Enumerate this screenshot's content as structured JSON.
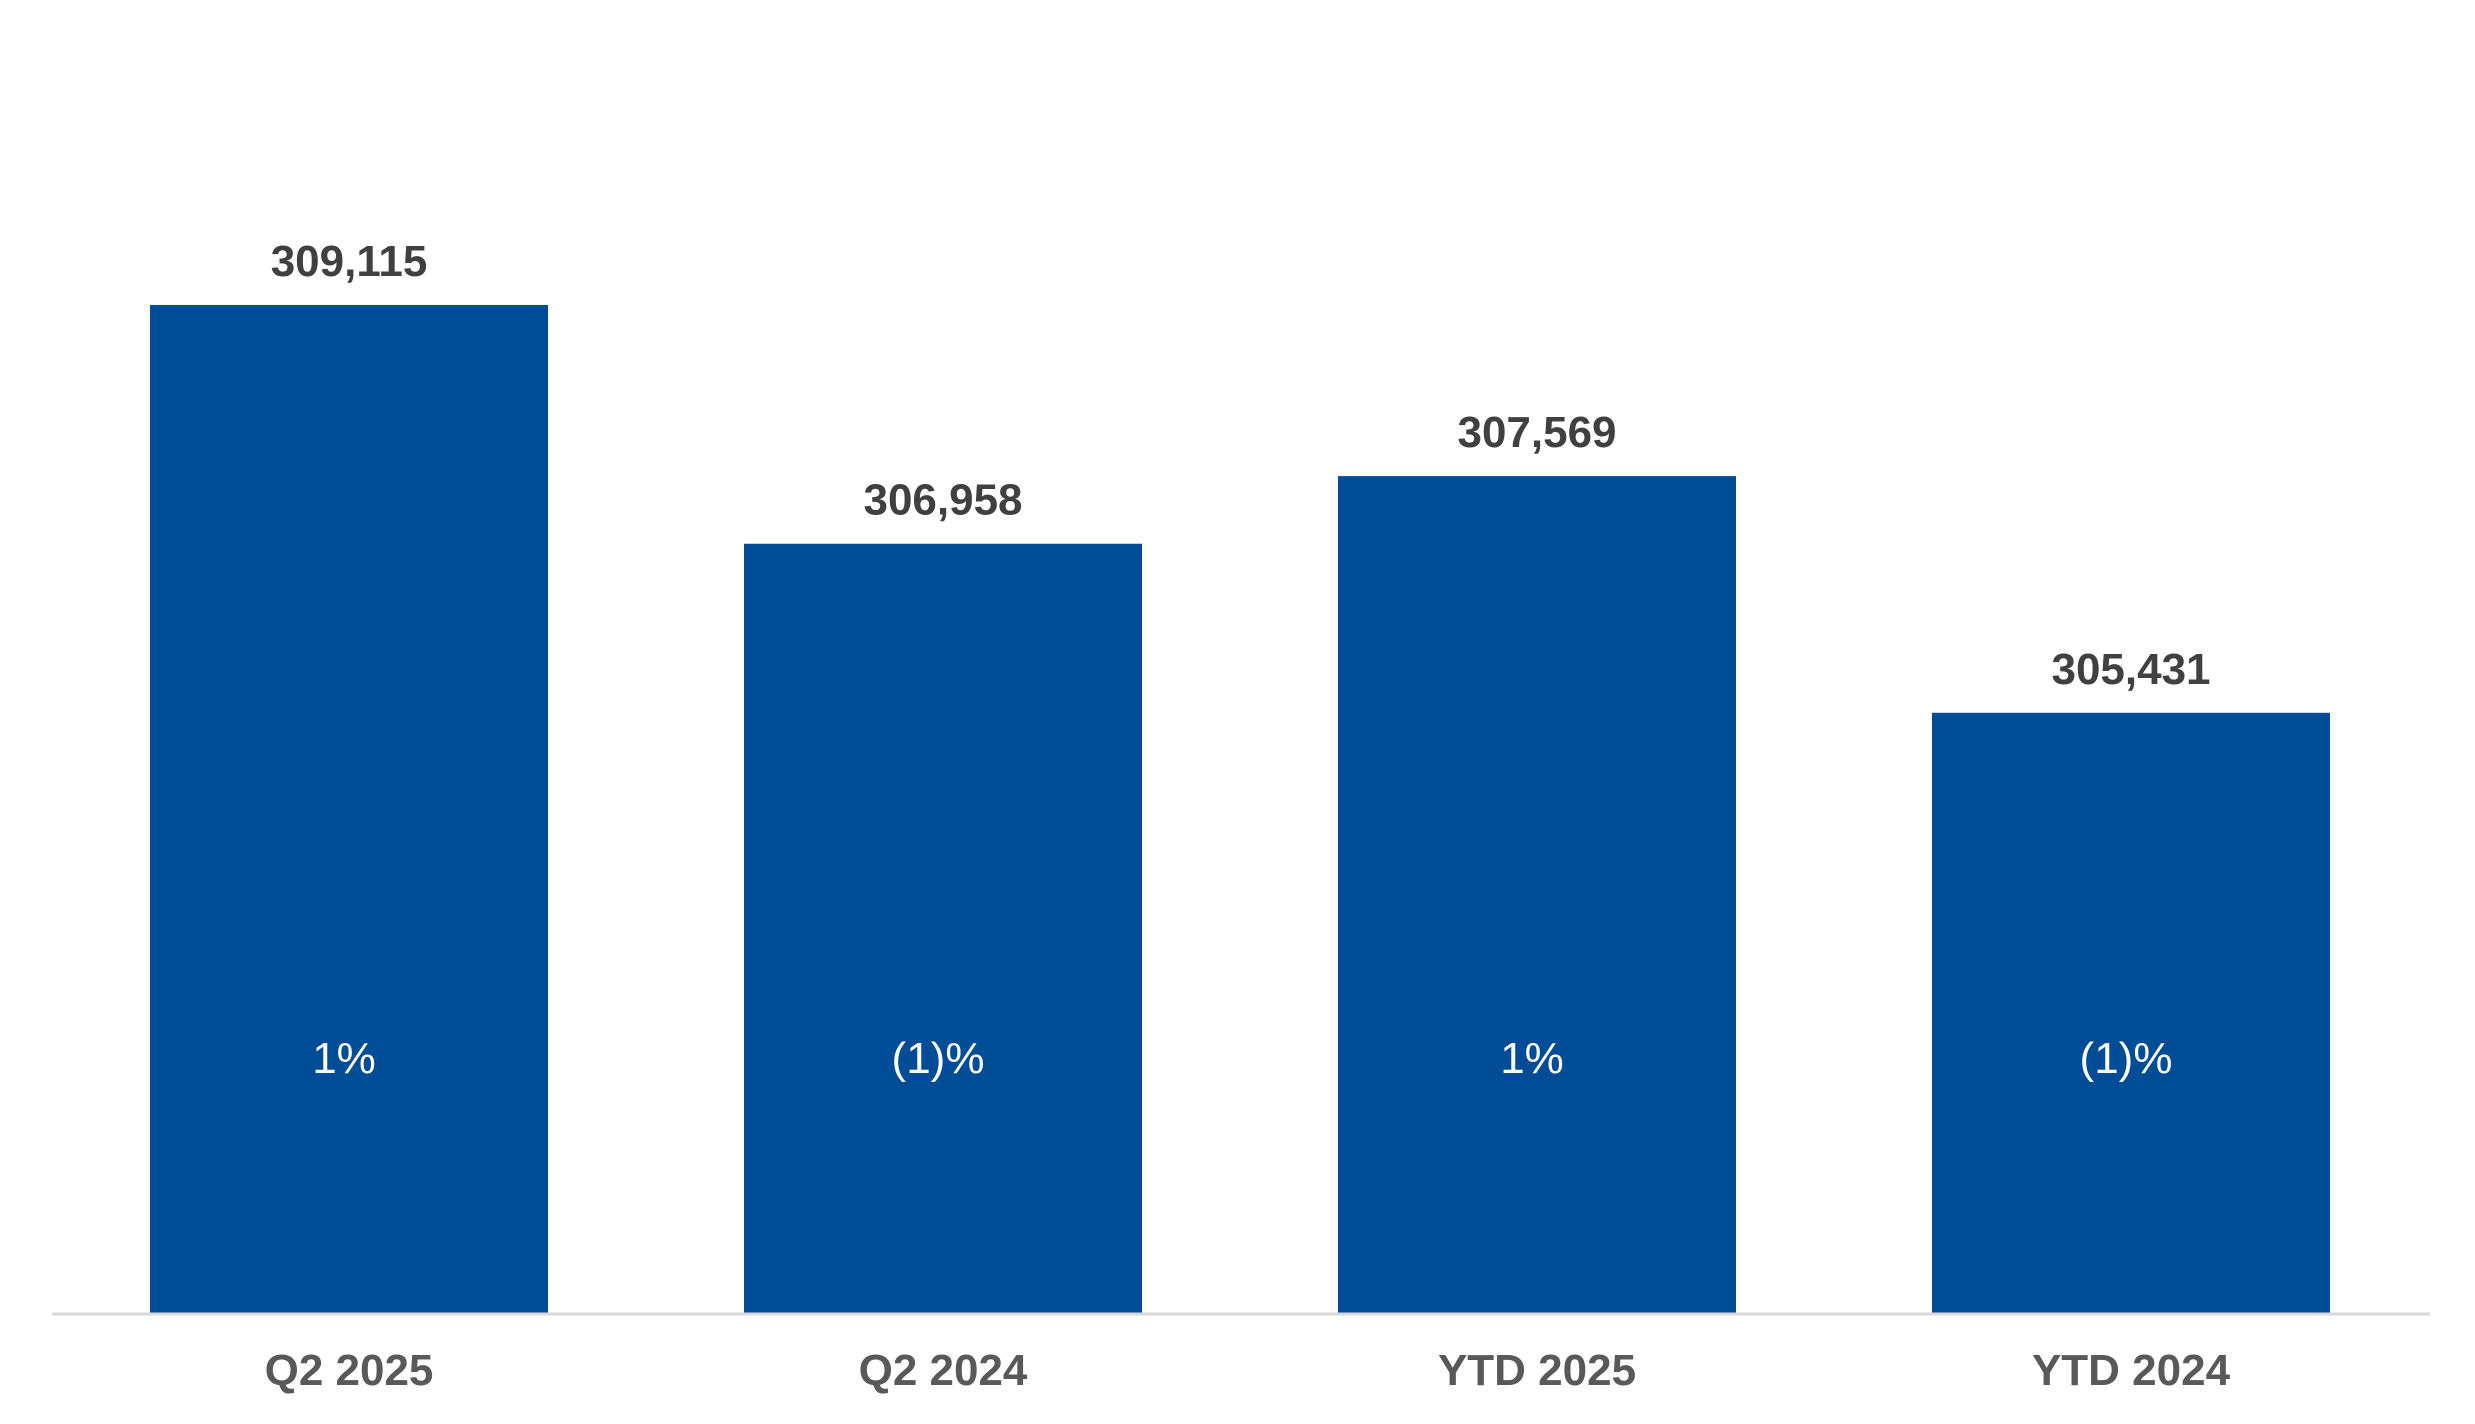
{
  "chart_data": {
    "type": "bar",
    "categories": [
      "Q2 2025",
      "Q2 2024",
      "YTD 2025",
      "YTD 2024"
    ],
    "values": [
      309115,
      306958,
      307569,
      305431
    ],
    "data_labels": [
      "309,115",
      "306,958",
      "307,569",
      "305,431"
    ],
    "bar_annotations": [
      "1%",
      "(1)%",
      "1%",
      "(1)%"
    ],
    "title": "",
    "xlabel": "",
    "ylabel": "",
    "ylim": [
      300000,
      310000
    ],
    "grid": false,
    "legend": "none",
    "colors": {
      "bar": "#004C97",
      "axis": "#D9D9D9",
      "value_label": "#404040",
      "category_label": "#595959",
      "annotation": "#FFFFFF"
    }
  }
}
